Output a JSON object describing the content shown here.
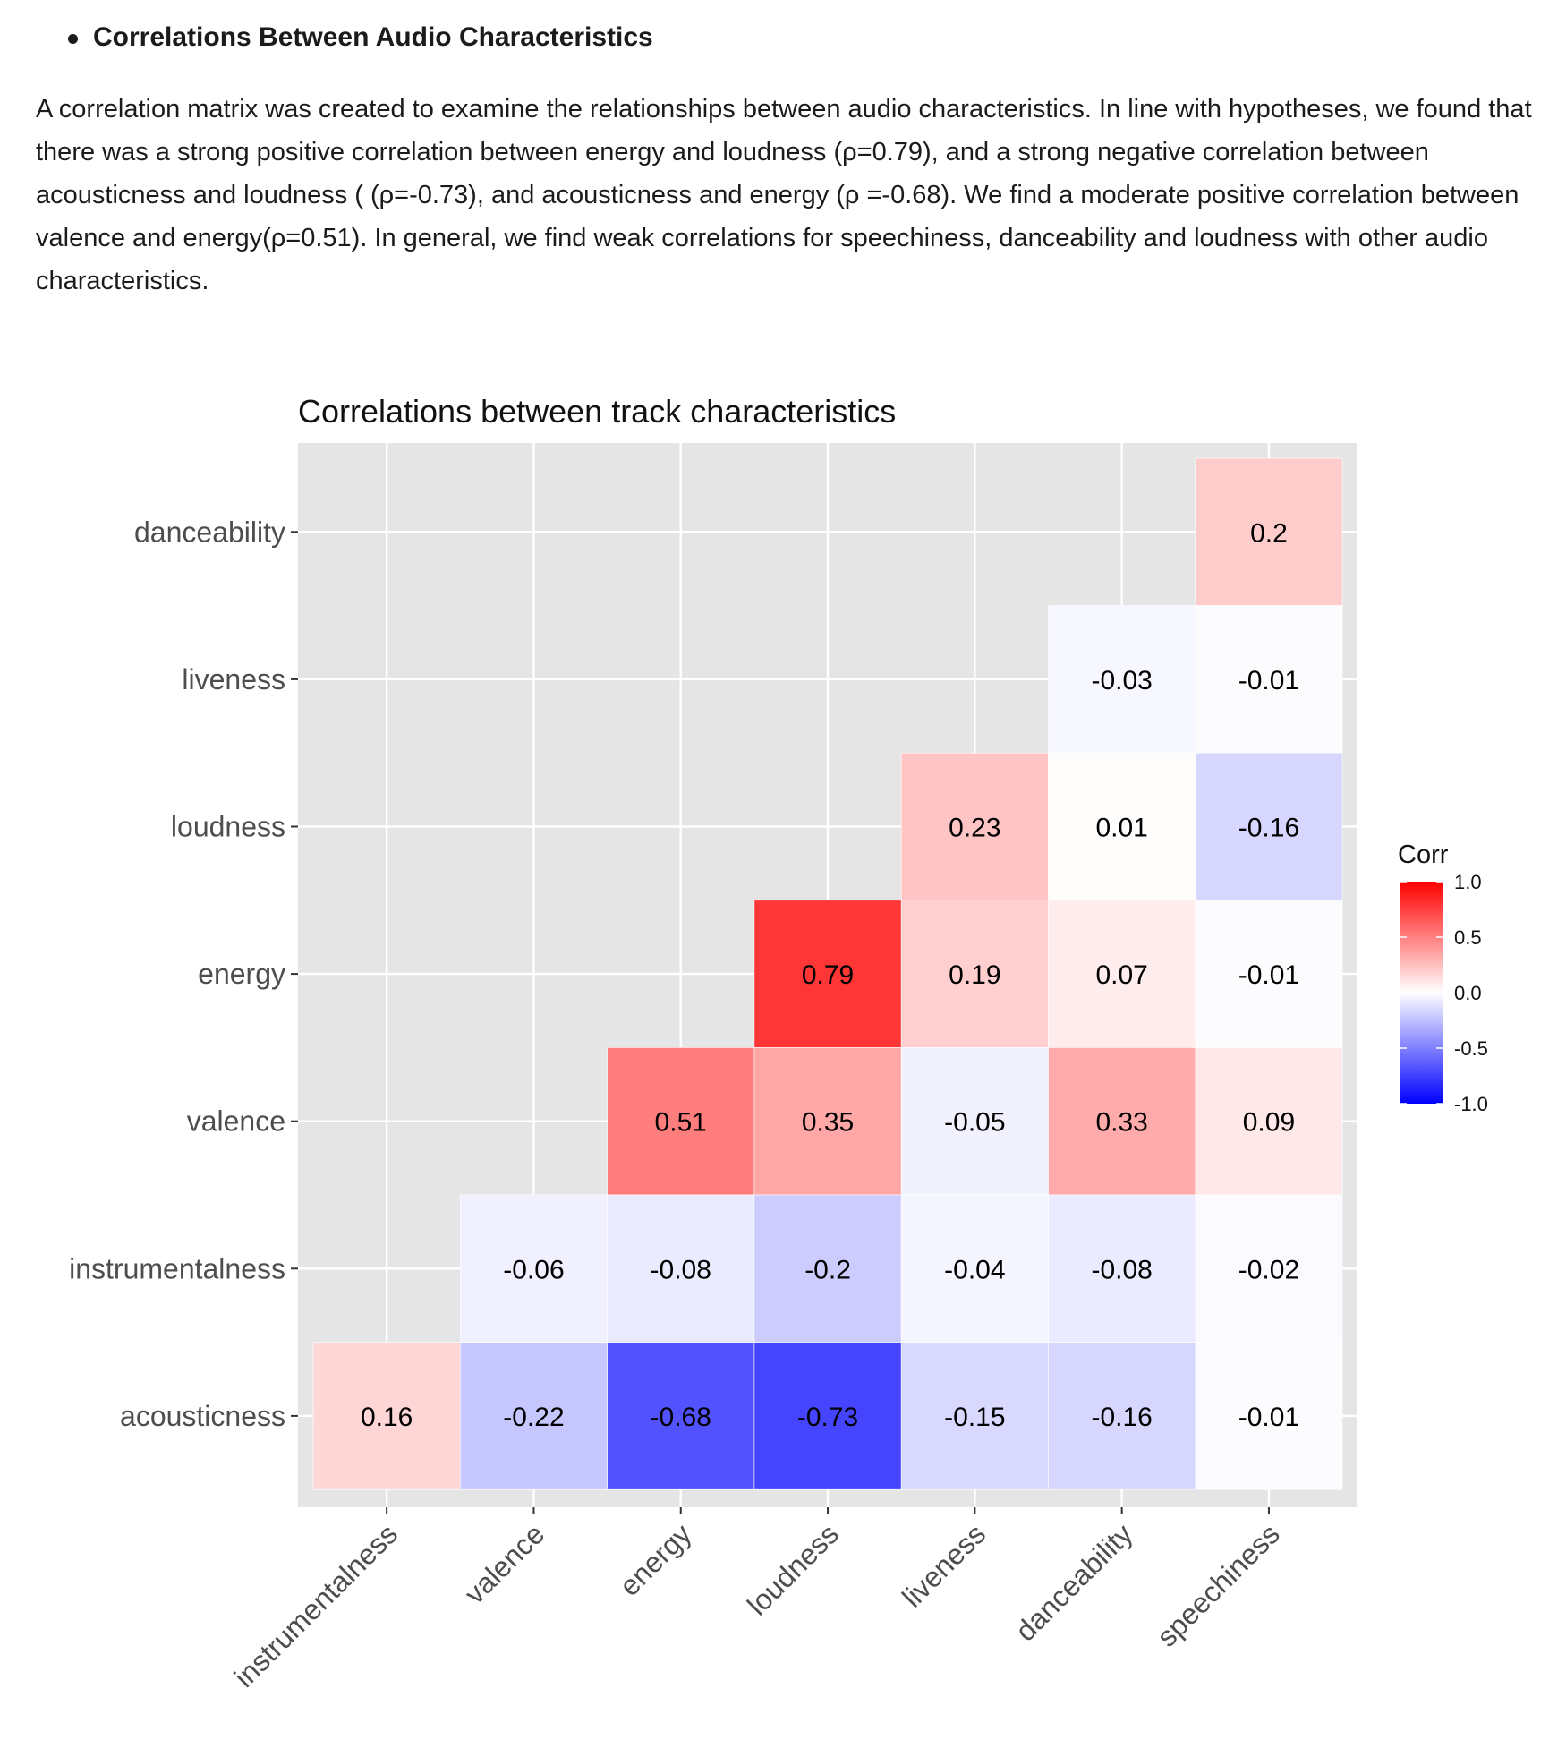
{
  "section": {
    "heading": "Correlations Between Audio Characteristics"
  },
  "paragraph": {
    "text": "A correlation matrix was created to examine the relationships between audio characteristics. In line with hypotheses, we found that there was a strong positive correlation between energy and loudness (ρ=0.79), and a strong negative correlation between acousticness and loudness ( (ρ=-0.73), and acousticness and energy (ρ =-0.68). We find a moderate positive correlation between valence and energy(ρ=0.51). In general, we find weak correlations for speechiness, danceability and loudness with other audio characteristics."
  },
  "chart_data": {
    "type": "heatmap",
    "title": "Correlations between track characteristics",
    "xlabel": "",
    "ylabel": "",
    "x_categories": [
      "instrumentalness",
      "valence",
      "energy",
      "loudness",
      "liveness",
      "danceability",
      "speechiness"
    ],
    "y_categories": [
      "danceability",
      "liveness",
      "loudness",
      "energy",
      "valence",
      "instrumentalness",
      "acousticness"
    ],
    "values": [
      [
        null,
        null,
        null,
        null,
        null,
        null,
        0.2
      ],
      [
        null,
        null,
        null,
        null,
        null,
        -0.03,
        -0.01
      ],
      [
        null,
        null,
        null,
        null,
        0.23,
        0.01,
        -0.16
      ],
      [
        null,
        null,
        null,
        0.79,
        0.19,
        0.07,
        -0.01
      ],
      [
        null,
        null,
        0.51,
        0.35,
        -0.05,
        0.33,
        0.09
      ],
      [
        null,
        -0.06,
        -0.08,
        -0.2,
        -0.04,
        -0.08,
        -0.02
      ],
      [
        0.16,
        -0.22,
        -0.68,
        -0.73,
        -0.15,
        -0.16,
        -0.01
      ]
    ],
    "value_labels": [
      [
        null,
        null,
        null,
        null,
        null,
        null,
        "0.2"
      ],
      [
        null,
        null,
        null,
        null,
        null,
        "-0.03",
        "-0.01"
      ],
      [
        null,
        null,
        null,
        null,
        "0.23",
        "0.01",
        "-0.16"
      ],
      [
        null,
        null,
        null,
        "0.79",
        "0.19",
        "0.07",
        "-0.01"
      ],
      [
        null,
        null,
        "0.51",
        "0.35",
        "-0.05",
        "0.33",
        "0.09"
      ],
      [
        null,
        "-0.06",
        "-0.08",
        "-0.2",
        "-0.04",
        "-0.08",
        "-0.02"
      ],
      [
        "0.16",
        "-0.22",
        "-0.68",
        "-0.73",
        "-0.15",
        "-0.16",
        "-0.01"
      ]
    ],
    "color_scale": {
      "low": "#0000ff",
      "mid": "#ffffff",
      "high": "#ff0000",
      "limits": [
        -1,
        1
      ]
    },
    "legend": {
      "title": "Corr",
      "ticks": [
        "1.0",
        "0.5",
        "0.0",
        "-0.5",
        "-1.0"
      ],
      "tick_values": [
        1,
        0.5,
        0,
        -0.5,
        -1
      ],
      "placement": "right"
    },
    "grid": true,
    "panel_background": "#e5e5e5"
  }
}
